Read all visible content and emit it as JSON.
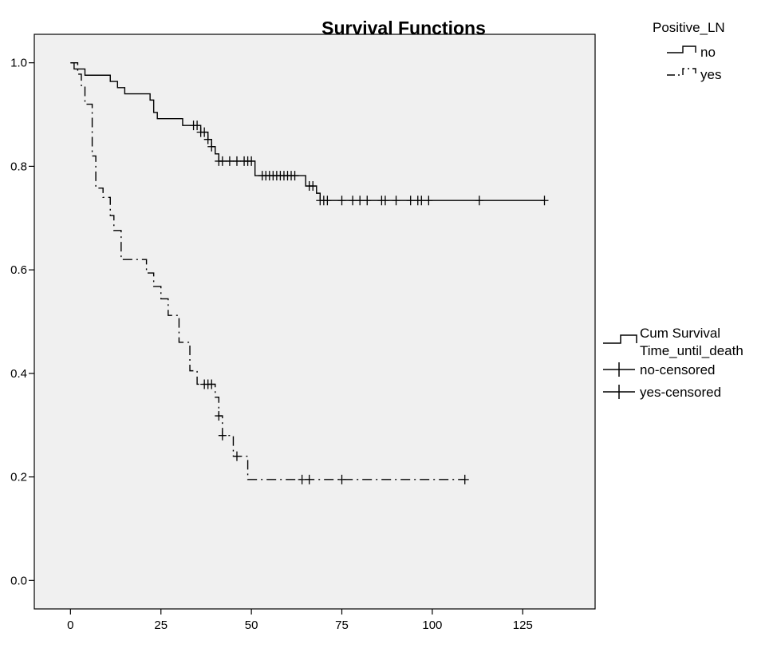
{
  "chart_data": {
    "type": "line",
    "title": "Survival Functions",
    "xlabel": "",
    "ylabel": "",
    "xlim": [
      -10,
      145
    ],
    "ylim": [
      -0.055,
      1.055
    ],
    "x_ticks": [
      0,
      25,
      50,
      75,
      100,
      125
    ],
    "y_ticks": [
      0.0,
      0.2,
      0.4,
      0.6,
      0.8,
      1.0
    ],
    "y_tick_labels": [
      "0.0",
      "0.2",
      "0.4",
      "0.6",
      "0.8",
      "1.0"
    ],
    "grid": false,
    "legend_group": {
      "title": "Positive_LN",
      "entries": [
        "no",
        "yes"
      ],
      "placement": "top-right"
    },
    "legend_markers": {
      "entries": [
        "Cum Survival",
        "Time_until_death",
        "no-censored",
        "yes-censored"
      ],
      "placement": "right"
    },
    "series": [
      {
        "name": "no",
        "style": "solid",
        "steps": [
          [
            0,
            1.0
          ],
          [
            1,
            0.988
          ],
          [
            4,
            0.976
          ],
          [
            11,
            0.964
          ],
          [
            13,
            0.952
          ],
          [
            15,
            0.94
          ],
          [
            22,
            0.928
          ],
          [
            23,
            0.904
          ],
          [
            24,
            0.892
          ],
          [
            31,
            0.879
          ],
          [
            36,
            0.866
          ],
          [
            38,
            0.852
          ],
          [
            39,
            0.838
          ],
          [
            40,
            0.824
          ],
          [
            41,
            0.81
          ],
          [
            51,
            0.782
          ],
          [
            65,
            0.762
          ],
          [
            68,
            0.748
          ],
          [
            69,
            0.734
          ],
          [
            131,
            0.734
          ]
        ],
        "censored": [
          34,
          35,
          36,
          37,
          38,
          39,
          41,
          42,
          44,
          46,
          48,
          49,
          50,
          53,
          54,
          55,
          56,
          57,
          58,
          59,
          60,
          61,
          62,
          66,
          67,
          69,
          70,
          71,
          75,
          78,
          80,
          82,
          86,
          87,
          90,
          94,
          96,
          97,
          99,
          113,
          131
        ]
      },
      {
        "name": "yes",
        "style": "dash-dot",
        "steps": [
          [
            0,
            1.0
          ],
          [
            2,
            0.978
          ],
          [
            3,
            0.956
          ],
          [
            4,
            0.92
          ],
          [
            6,
            0.82
          ],
          [
            7,
            0.758
          ],
          [
            9,
            0.74
          ],
          [
            11,
            0.705
          ],
          [
            12,
            0.676
          ],
          [
            14,
            0.62
          ],
          [
            21,
            0.594
          ],
          [
            23,
            0.568
          ],
          [
            25,
            0.544
          ],
          [
            27,
            0.512
          ],
          [
            30,
            0.46
          ],
          [
            33,
            0.405
          ],
          [
            35,
            0.379
          ],
          [
            40,
            0.354
          ],
          [
            41,
            0.318
          ],
          [
            42,
            0.28
          ],
          [
            45,
            0.24
          ],
          [
            49,
            0.195
          ],
          [
            109,
            0.195
          ]
        ],
        "censored": [
          37,
          38,
          39,
          41,
          42,
          46,
          64,
          66,
          75,
          109
        ]
      }
    ]
  }
}
